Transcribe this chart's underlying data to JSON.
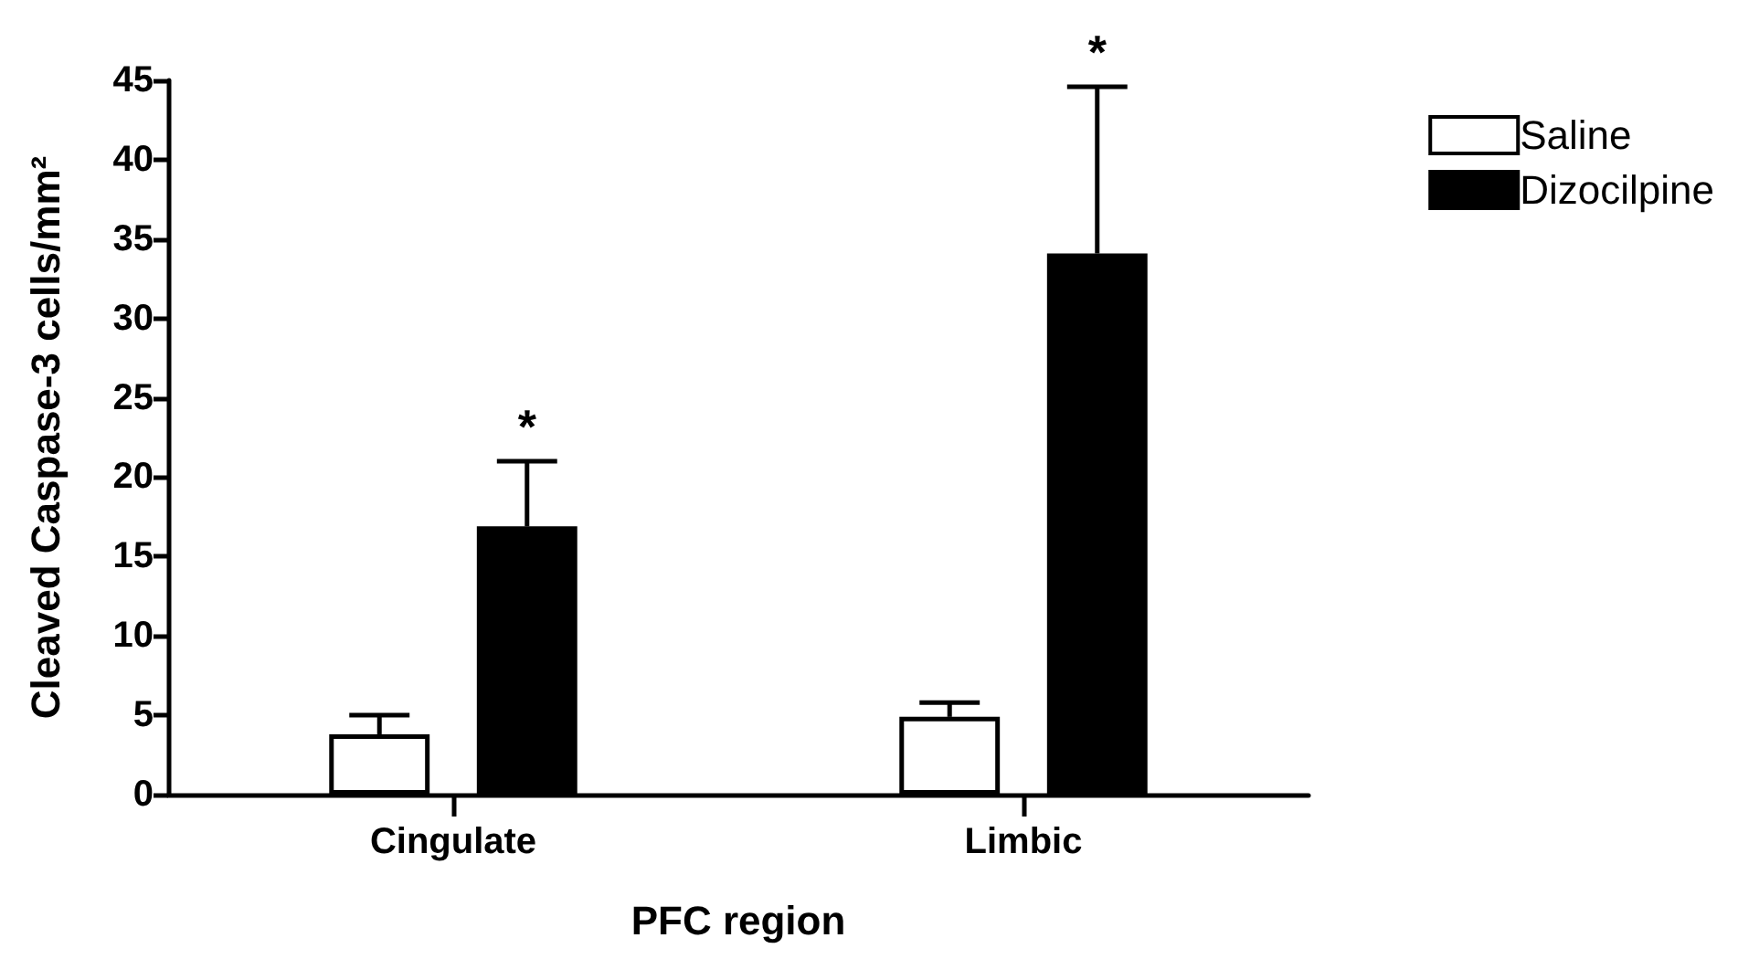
{
  "chart_data": {
    "type": "bar",
    "xlabel": "PFC region",
    "ylabel": "Cleaved Caspase-3 cells/mm²",
    "categories": [
      "Cingulate",
      "Limbic"
    ],
    "series": [
      {
        "name": "Saline",
        "color": "#ffffff",
        "values": [
          3.8,
          4.9
        ],
        "errors": [
          1.2,
          0.9
        ]
      },
      {
        "name": "Dizocilpine",
        "color": "#000000",
        "values": [
          16.9,
          34.1
        ],
        "errors": [
          4.1,
          10.5
        ]
      }
    ],
    "ylim": [
      0,
      45
    ],
    "yticks": [
      0,
      5,
      10,
      15,
      20,
      25,
      30,
      35,
      40,
      45
    ],
    "grid": false,
    "legend": "top right",
    "annotations": [
      "*",
      "*"
    ]
  }
}
